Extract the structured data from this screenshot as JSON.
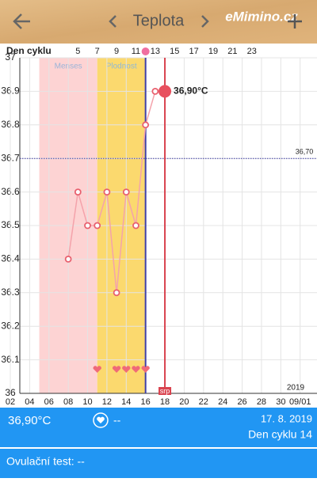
{
  "header": {
    "title": "Teplota",
    "logo": "eMimino.cz"
  },
  "chart_data": {
    "type": "line",
    "cycle_axis_label": "Den cyklu",
    "cycle_ticks": [
      {
        "value": 9,
        "label": "5"
      },
      {
        "value": 11,
        "label": "7"
      },
      {
        "value": 13,
        "label": "9"
      },
      {
        "value": 15,
        "label": "11"
      },
      {
        "value": 17,
        "label": "13"
      },
      {
        "value": 19,
        "label": "15"
      },
      {
        "value": 21,
        "label": "17"
      },
      {
        "value": 23,
        "label": "19"
      },
      {
        "value": 25,
        "label": "21"
      },
      {
        "value": 27,
        "label": "23"
      }
    ],
    "x": [
      8,
      9,
      10,
      11,
      12,
      13,
      14,
      15,
      16,
      17
    ],
    "values": [
      36.4,
      36.6,
      36.5,
      36.5,
      36.6,
      36.3,
      36.6,
      36.5,
      36.8,
      36.9
    ],
    "color": "#f4a3ab",
    "point_color": "#e8606e",
    "highlight": {
      "x": 18,
      "value": 36.9,
      "label": "36,90°C",
      "color": "#e8505e"
    },
    "xlim": [
      2,
      33.5
    ],
    "xticks": [
      {
        "value": 2,
        "label": "02"
      },
      {
        "value": 4,
        "label": "04"
      },
      {
        "value": 6,
        "label": "06"
      },
      {
        "value": 8,
        "label": "08"
      },
      {
        "value": 10,
        "label": "10"
      },
      {
        "value": 12,
        "label": "12"
      },
      {
        "value": 14,
        "label": "14"
      },
      {
        "value": 16,
        "label": "16"
      },
      {
        "value": 18,
        "label": "18"
      },
      {
        "value": 20,
        "label": "20"
      },
      {
        "value": 22,
        "label": "22"
      },
      {
        "value": 24,
        "label": "24"
      },
      {
        "value": 26,
        "label": "26"
      },
      {
        "value": 28,
        "label": "28"
      },
      {
        "value": 30,
        "label": "30"
      },
      {
        "value": 32,
        "label": "09/01"
      }
    ],
    "ylim": [
      36,
      37
    ],
    "yticks": [
      36,
      36.1,
      36.2,
      36.3,
      36.4,
      36.5,
      36.6,
      36.7,
      36.8,
      36.9,
      37
    ],
    "grid": true,
    "bands": [
      {
        "name": "Menses",
        "from": 5,
        "to": 11,
        "color": "#fdd3d3"
      },
      {
        "name": "Plodnost",
        "from": 11,
        "to": 16,
        "color": "#fbd96e"
      }
    ],
    "reference_line": {
      "value": 36.7,
      "label": "36,70",
      "color": "#3a3aa6"
    },
    "ovulation": {
      "x": 16,
      "color": "#3f3fa8",
      "dot_color": "#f06ea0"
    },
    "cycle_marker": {
      "x": 18,
      "label": "srp",
      "color": "#d9434f"
    },
    "hearts": {
      "x": [
        11,
        13,
        14,
        15,
        16
      ],
      "color": "#f06a78"
    },
    "year": "2019"
  },
  "footer": {
    "temperature": "36,90°C",
    "heart_status": "--",
    "date": "17. 8. 2019",
    "cycle_day": "Den cyklu 14",
    "ovulation_test": "Ovulační test: --"
  }
}
